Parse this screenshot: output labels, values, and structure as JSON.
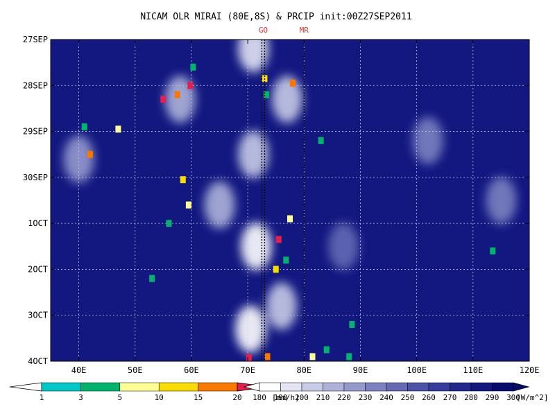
{
  "chart_data": {
    "type": "heatmap",
    "title": "NICAM OLR MIRAI (80E,8S) & PRCIP init:00Z27SEP2011",
    "x_axis": {
      "range": [
        35,
        120
      ],
      "ticks": [
        40,
        50,
        60,
        70,
        80,
        90,
        100,
        110,
        120
      ],
      "tick_labels": [
        "40E",
        "50E",
        "60E",
        "70E",
        "80E",
        "90E",
        "100E",
        "110E",
        "120E"
      ]
    },
    "y_axis": {
      "range_days_from_27sep": [
        0,
        7
      ],
      "ticks": [
        0,
        1,
        2,
        3,
        4,
        5,
        6,
        7
      ],
      "tick_labels": [
        "27SEP",
        "28SEP",
        "29SEP",
        "30SEP",
        "1OCT",
        "2OCT",
        "3OCT",
        "4OCT"
      ],
      "direction": "top-to-bottom"
    },
    "grid": true,
    "markers": [
      {
        "label": "GO",
        "lons": [
          72.5,
          73.0
        ]
      },
      {
        "label": "MR",
        "lons": [
          80.0
        ]
      }
    ],
    "precip_colorbar": {
      "levels": [
        "1",
        "3",
        "5",
        "10",
        "15",
        "20"
      ],
      "unit": "[mm/h]",
      "colors": [
        "#00c8c8",
        "#00b46e",
        "#ffff96",
        "#fadc00",
        "#fa7800",
        "#e61e50"
      ]
    },
    "olr_colorbar": {
      "levels": [
        "180",
        "190",
        "200",
        "210",
        "220",
        "230",
        "240",
        "250",
        "260",
        "270",
        "280",
        "290",
        "300"
      ],
      "unit": "[W/m^2]",
      "colors": [
        "#ffffff",
        "#e2e4f3",
        "#c8cbe6",
        "#aeb2d9",
        "#959acd",
        "#7c82c0",
        "#646ab4",
        "#4c52a7",
        "#363c9b",
        "#22288e",
        "#121880",
        "#060b70"
      ]
    },
    "convective_features": [
      {
        "lon": 71.0,
        "day": 0.2,
        "olr": 190
      },
      {
        "lon": 71.0,
        "day": 2.5,
        "olr": 200
      },
      {
        "lon": 71.5,
        "day": 4.5,
        "olr": 185
      },
      {
        "lon": 70.5,
        "day": 6.3,
        "olr": 185
      },
      {
        "lon": 77.0,
        "day": 1.3,
        "olr": 200
      },
      {
        "lon": 76.0,
        "day": 5.8,
        "olr": 200
      },
      {
        "lon": 58.0,
        "day": 1.3,
        "olr": 210
      },
      {
        "lon": 40.0,
        "day": 2.6,
        "olr": 220
      },
      {
        "lon": 65.0,
        "day": 3.6,
        "olr": 215
      },
      {
        "lon": 102.0,
        "day": 2.2,
        "olr": 235
      },
      {
        "lon": 115.0,
        "day": 3.5,
        "olr": 230
      },
      {
        "lon": 87.0,
        "day": 4.5,
        "olr": 245
      }
    ],
    "precip_cells": [
      {
        "lon": 42.0,
        "day": 2.5,
        "mmh": 18
      },
      {
        "lon": 41.0,
        "day": 1.9,
        "mmh": 3
      },
      {
        "lon": 47.0,
        "day": 1.95,
        "mmh": 8
      },
      {
        "lon": 55.0,
        "day": 1.3,
        "mmh": 20
      },
      {
        "lon": 57.5,
        "day": 1.2,
        "mmh": 17
      },
      {
        "lon": 59.8,
        "day": 1.0,
        "mmh": 20
      },
      {
        "lon": 60.3,
        "day": 0.6,
        "mmh": 3
      },
      {
        "lon": 58.5,
        "day": 3.05,
        "mmh": 14
      },
      {
        "lon": 59.5,
        "day": 3.6,
        "mmh": 6
      },
      {
        "lon": 56.0,
        "day": 4.0,
        "mmh": 3
      },
      {
        "lon": 53.0,
        "day": 5.2,
        "mmh": 3
      },
      {
        "lon": 73.0,
        "day": 0.85,
        "mmh": 12
      },
      {
        "lon": 73.3,
        "day": 1.2,
        "mmh": 4
      },
      {
        "lon": 78.0,
        "day": 0.95,
        "mmh": 15
      },
      {
        "lon": 75.5,
        "day": 4.35,
        "mmh": 20
      },
      {
        "lon": 76.8,
        "day": 4.8,
        "mmh": 3
      },
      {
        "lon": 75.0,
        "day": 5.0,
        "mmh": 12
      },
      {
        "lon": 77.5,
        "day": 3.9,
        "mmh": 8
      },
      {
        "lon": 83.0,
        "day": 2.2,
        "mmh": 3
      },
      {
        "lon": 84.0,
        "day": 6.75,
        "mmh": 4
      },
      {
        "lon": 81.5,
        "day": 6.9,
        "mmh": 7
      },
      {
        "lon": 73.5,
        "day": 6.9,
        "mmh": 17
      },
      {
        "lon": 70.2,
        "day": 6.92,
        "mmh": 20
      },
      {
        "lon": 88.5,
        "day": 6.2,
        "mmh": 3
      },
      {
        "lon": 88.0,
        "day": 6.9,
        "mmh": 3
      },
      {
        "lon": 113.5,
        "day": 4.6,
        "mmh": 3
      }
    ]
  }
}
